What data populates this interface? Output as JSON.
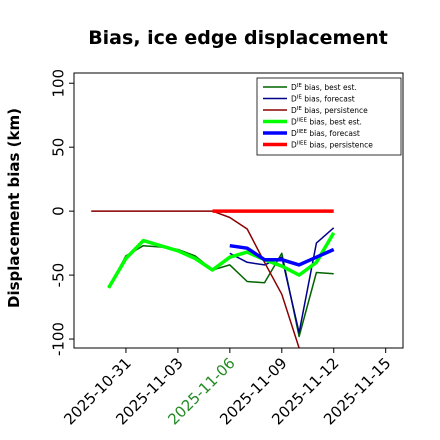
{
  "chart_data": {
    "type": "line",
    "title": "Bias, ice edge displacement",
    "xlabel": "",
    "ylabel": "Displacement bias (km)",
    "xlim": [
      "2025-10-28",
      "2025-11-16"
    ],
    "ylim": [
      -107,
      108
    ],
    "yticks": [
      100,
      50,
      0,
      -50,
      -100
    ],
    "xticks": [
      "2025-10-31",
      "2025-11-03",
      "2025-11-06",
      "2025-11-09",
      "2025-11-12",
      "2025-11-15"
    ],
    "xtick_colors": [
      "#000000",
      "#000000",
      "#228b22",
      "#000000",
      "#000000",
      "#000000"
    ],
    "legend_position": "top-right",
    "series": [
      {
        "name": "D^IE bias, best est.",
        "color": "#006400",
        "width": 1.5,
        "x": [
          "2025-10-30",
          "2025-10-31",
          "2025-11-01",
          "2025-11-02",
          "2025-11-03",
          "2025-11-04",
          "2025-11-05",
          "2025-11-06",
          "2025-11-07",
          "2025-11-08",
          "2025-11-09",
          "2025-11-10",
          "2025-11-11",
          "2025-11-12"
        ],
        "y": [
          -60,
          -35,
          -27,
          -28,
          -30,
          -35,
          -46,
          -42,
          -55,
          -56,
          -33,
          -98,
          -48,
          -49
        ]
      },
      {
        "name": "D^IE bias, forecast",
        "color": "#00008b",
        "width": 1.5,
        "x": [
          "2025-11-06",
          "2025-11-07",
          "2025-11-08",
          "2025-11-09",
          "2025-11-10",
          "2025-11-11",
          "2025-11-12"
        ],
        "y": [
          -33,
          -40,
          -42,
          -36,
          -95,
          -25,
          -13
        ]
      },
      {
        "name": "D^IE bias, persistence",
        "color": "#8b0000",
        "width": 1.5,
        "x": [
          "2025-10-29",
          "2025-11-05",
          "2025-11-06",
          "2025-11-07",
          "2025-11-08",
          "2025-11-09",
          "2025-11-10"
        ],
        "y": [
          0,
          0,
          -5,
          -14,
          -40,
          -65,
          -107
        ]
      },
      {
        "name": "D^IIEE bias, best est.",
        "color": "#00ff00",
        "width": 3.5,
        "x": [
          "2025-10-30",
          "2025-10-31",
          "2025-11-01",
          "2025-11-02",
          "2025-11-03",
          "2025-11-04",
          "2025-11-05",
          "2025-11-06",
          "2025-11-07",
          "2025-11-08",
          "2025-11-09",
          "2025-11-10",
          "2025-11-11",
          "2025-11-12"
        ],
        "y": [
          -60,
          -37,
          -23,
          -27,
          -31,
          -37,
          -46,
          -36,
          -32,
          -38,
          -43,
          -50,
          -40,
          -17
        ]
      },
      {
        "name": "D^IIEE bias, forecast",
        "color": "#0000ff",
        "width": 3.5,
        "x": [
          "2025-11-06",
          "2025-11-07",
          "2025-11-08",
          "2025-11-09",
          "2025-11-10",
          "2025-11-11",
          "2025-11-12"
        ],
        "y": [
          -27,
          -29,
          -38,
          -38,
          -42,
          -36,
          -30
        ]
      },
      {
        "name": "D^IIEE bias, persistence",
        "color": "#ff0000",
        "width": 3.5,
        "x": [
          "2025-11-05",
          "2025-11-12"
        ],
        "y": [
          0,
          0
        ]
      }
    ],
    "extra_lines": [
      {
        "color": "#808080",
        "width": 1.2,
        "x": [
          "2025-10-29",
          "2025-11-05"
        ],
        "y": [
          0,
          0
        ]
      }
    ],
    "legend": [
      {
        "prefix": "D",
        "sup": "IE",
        "rest": " bias, best est.",
        "color": "#006400",
        "width": 1.5
      },
      {
        "prefix": "D",
        "sup": "IE",
        "rest": " bias, forecast",
        "color": "#00008b",
        "width": 1.5
      },
      {
        "prefix": "D",
        "sup": "IE",
        "rest": " bias, persistence",
        "color": "#8b0000",
        "width": 1.5
      },
      {
        "prefix": "D",
        "sup": "IIEE",
        "rest": " bias, best est.",
        "color": "#00ff00",
        "width": 3.5
      },
      {
        "prefix": "D",
        "sup": "IIEE",
        "rest": " bias, forecast",
        "color": "#0000ff",
        "width": 3.5
      },
      {
        "prefix": "D",
        "sup": "IIEE",
        "rest": " bias, persistence",
        "color": "#ff0000",
        "width": 3.5
      }
    ]
  }
}
